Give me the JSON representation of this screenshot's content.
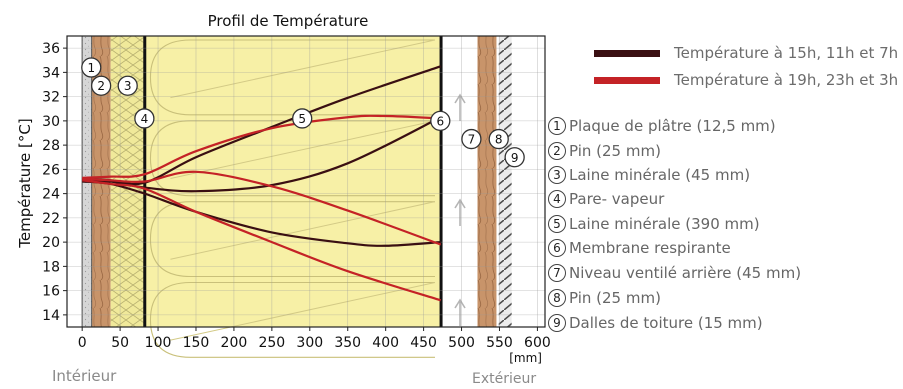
{
  "chart_data": {
    "type": "line",
    "title": "Profil de Température",
    "ylabel": "Température [°C]",
    "xlabel": "[mm]",
    "xlim": [
      -20,
      610
    ],
    "ylim": [
      13,
      37
    ],
    "x_ticks": [
      0,
      50,
      100,
      150,
      200,
      250,
      300,
      350,
      400,
      450,
      500,
      550,
      600
    ],
    "y_ticks": [
      14,
      16,
      18,
      20,
      22,
      24,
      26,
      28,
      30,
      32,
      34,
      36
    ],
    "grid": true,
    "series": [
      {
        "name": "Température à 15h, 11h et 7h",
        "color": "#3a0f12",
        "curves": [
          {
            "x": [
              0,
              37.5,
              82.5,
              150,
              250,
              350,
              472.5
            ],
            "y": [
              25.2,
              25.1,
              24.9,
              27.0,
              29.5,
              31.9,
              34.5
            ]
          },
          {
            "x": [
              0,
              37.5,
              82.5,
              150,
              250,
              350,
              472.5
            ],
            "y": [
              25.1,
              25.0,
              24.5,
              24.2,
              24.7,
              26.5,
              30.3
            ]
          },
          {
            "x": [
              0,
              37.5,
              82.5,
              150,
              250,
              350,
              400,
              472.5
            ],
            "y": [
              25.0,
              24.8,
              24.0,
              22.5,
              20.8,
              19.9,
              19.7,
              20.0
            ]
          }
        ]
      },
      {
        "name": "Température à 19h, 23h et 3h",
        "color": "#c42226",
        "curves": [
          {
            "x": [
              0,
              37.5,
              82.5,
              150,
              250,
              350,
              400,
              472.5
            ],
            "y": [
              25.3,
              25.4,
              25.6,
              27.5,
              29.4,
              30.3,
              30.4,
              30.2
            ]
          },
          {
            "x": [
              0,
              37.5,
              82.5,
              150,
              250,
              350,
              472.5
            ],
            "y": [
              25.2,
              25.1,
              25.0,
              25.8,
              24.6,
              22.6,
              19.8
            ]
          },
          {
            "x": [
              0,
              37.5,
              82.5,
              150,
              250,
              350,
              472.5
            ],
            "y": [
              25.1,
              24.8,
              24.4,
              22.5,
              20.0,
              17.6,
              15.2
            ]
          }
        ]
      }
    ],
    "markers": [
      {
        "id": "1",
        "x": 12,
        "y": 34.4
      },
      {
        "id": "2",
        "x": 25,
        "y": 32.9
      },
      {
        "id": "3",
        "x": 60,
        "y": 32.9
      },
      {
        "id": "4",
        "x": 82,
        "y": 30.2
      },
      {
        "id": "5",
        "x": 290,
        "y": 30.2
      },
      {
        "id": "6",
        "x": 472,
        "y": 30.0
      },
      {
        "id": "7",
        "x": 513,
        "y": 28.5
      },
      {
        "id": "8",
        "x": 549,
        "y": 28.5
      },
      {
        "id": "9",
        "x": 570,
        "y": 27.0
      }
    ],
    "layers": [
      {
        "id": "1",
        "label": "Plaque de plâtre (12,5 mm)"
      },
      {
        "id": "2",
        "label": "Pin (25 mm)"
      },
      {
        "id": "3",
        "label": "Laine minérale (45 mm)"
      },
      {
        "id": "4",
        "label": "Pare- vapeur"
      },
      {
        "id": "5",
        "label": "Laine minérale (390 mm)"
      },
      {
        "id": "6",
        "label": "Membrane respirante"
      },
      {
        "id": "7",
        "label": "Niveau ventilé arrière (45 mm)"
      },
      {
        "id": "8",
        "label": "Pin (25 mm)"
      },
      {
        "id": "9",
        "label": "Dalles de toiture (15 mm)"
      }
    ],
    "side_labels": {
      "inside": "Intérieur",
      "outside": "Extérieur"
    },
    "colors": {
      "insulation": "#f7f0a6",
      "wood": "#c8946a",
      "dark_series": "#3a0f12",
      "red_series": "#c42226"
    }
  }
}
